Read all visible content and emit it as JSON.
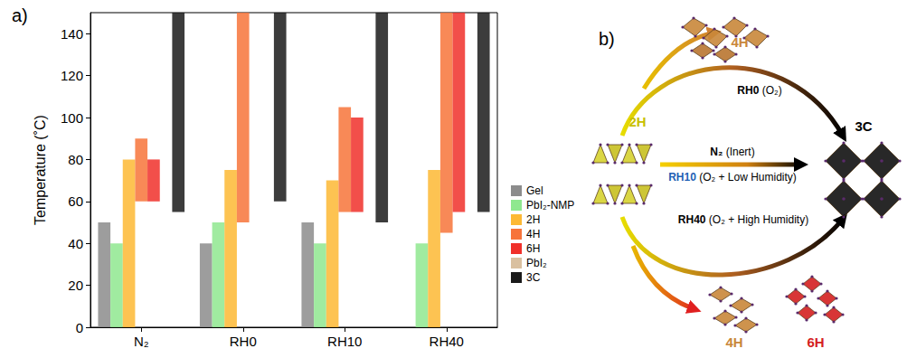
{
  "chart_data": {
    "type": "bar",
    "panel_label": "a)",
    "y_label": "Temperature (˚C)",
    "categories": [
      "N₂",
      "RH0",
      "RH10",
      "RH40"
    ],
    "series": [
      {
        "name": "Gel",
        "color": "#8c8c8c",
        "values": [
          [
            0,
            50
          ],
          [
            0,
            40
          ],
          [
            0,
            50
          ],
          null
        ]
      },
      {
        "name": "PbI₂-NMP",
        "color": "#8fe88f",
        "values": [
          [
            0,
            40
          ],
          [
            0,
            50
          ],
          [
            0,
            40
          ],
          [
            0,
            40
          ]
        ]
      },
      {
        "name": "2H",
        "color": "#fdb934",
        "values": [
          [
            0,
            80
          ],
          [
            0,
            75
          ],
          [
            0,
            70
          ],
          [
            0,
            75
          ]
        ]
      },
      {
        "name": "4H",
        "color": "#f7743a",
        "values": [
          [
            60,
            90
          ],
          [
            50,
            150
          ],
          [
            55,
            105
          ],
          [
            45,
            150
          ]
        ]
      },
      {
        "name": "6H",
        "color": "#f0302a",
        "values": [
          [
            60,
            80
          ],
          null,
          [
            55,
            100
          ],
          [
            55,
            150
          ]
        ]
      },
      {
        "name": "PbI₂",
        "color": "#d9c0a0",
        "values": [
          null,
          null,
          null,
          null
        ]
      },
      {
        "name": "3C",
        "color": "#1a1a1a",
        "values": [
          [
            55,
            150
          ],
          [
            60,
            150
          ],
          [
            50,
            150
          ],
          [
            55,
            150
          ]
        ]
      }
    ],
    "ylim": [
      0,
      150
    ],
    "yticks": [
      0,
      20,
      40,
      60,
      80,
      100,
      120,
      140
    ],
    "grid": false,
    "legend": "right"
  },
  "diagram": {
    "label": "b)",
    "start": "2H",
    "end": "3C",
    "products_top": [
      "4H"
    ],
    "products_bottom": [
      "4H",
      "6H"
    ],
    "paths": [
      {
        "condition": "RH0",
        "detail": "(O₂)"
      },
      {
        "condition": "N₂",
        "detail": "(Inert)"
      },
      {
        "condition": "RH10",
        "detail": "(O₂ + Low Humidity)"
      },
      {
        "condition": "RH40",
        "detail": "(O₂ + High Humidity)"
      }
    ]
  }
}
